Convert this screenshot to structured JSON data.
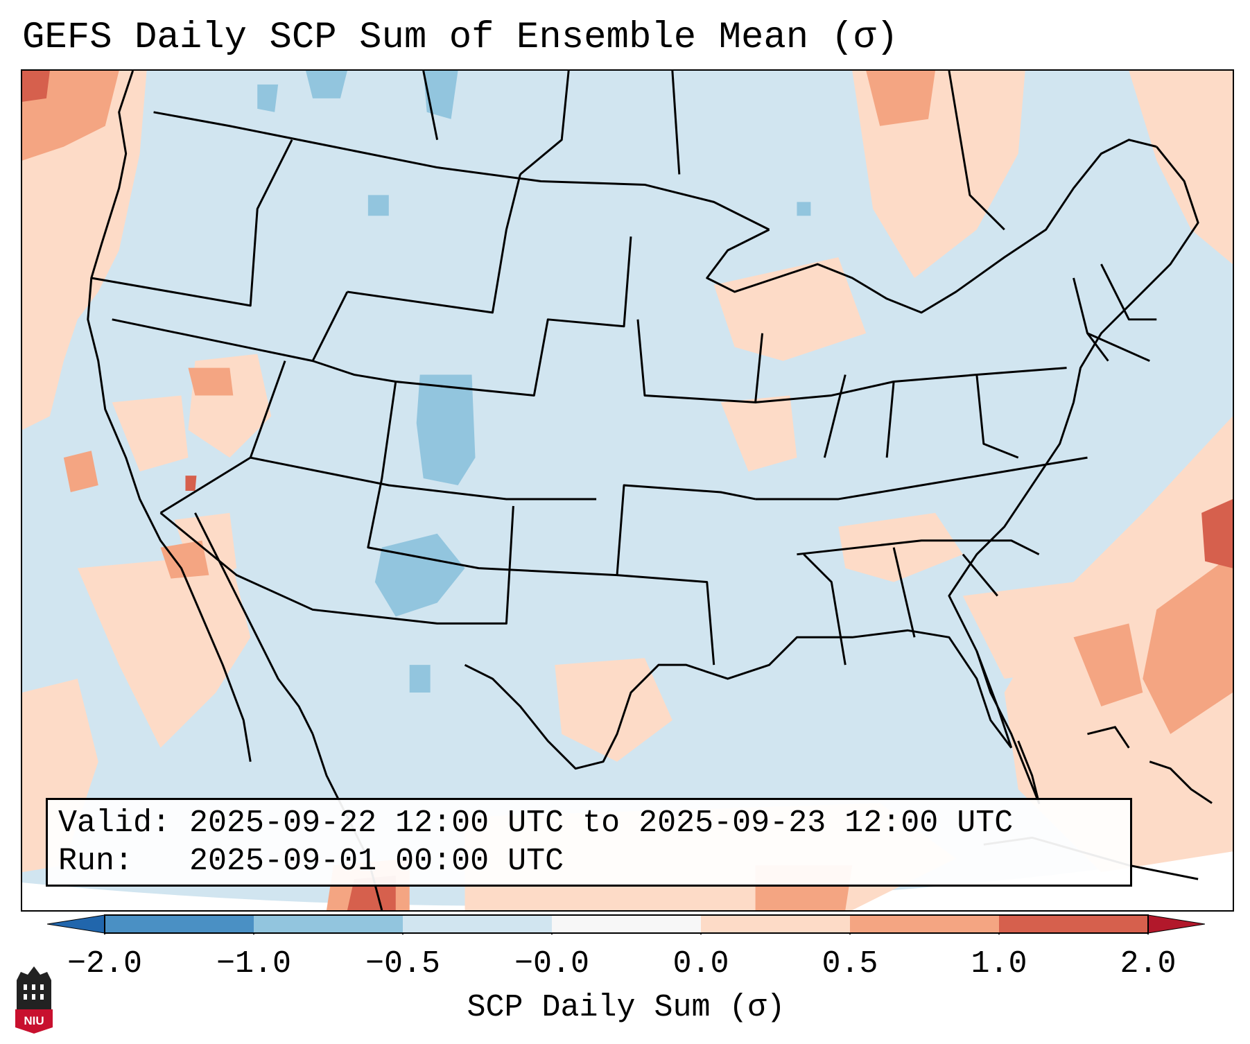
{
  "title": "GEFS Daily SCP Sum of Ensemble Mean (σ)",
  "info": {
    "valid_label": "Valid:",
    "valid_value": "2025-09-22 12:00 UTC to 2025-09-23 12:00 UTC",
    "run_label": "Run:",
    "run_value": "2025-09-01 00:00 UTC"
  },
  "colorbar": {
    "label": "SCP Daily Sum (σ)",
    "ticks": [
      "−2.0",
      "−1.0",
      "−0.5",
      "−0.0",
      "0.0",
      "0.5",
      "1.0",
      "2.0"
    ],
    "segment_colors": [
      "#4a90c4",
      "#92c5de",
      "#d1e5f0",
      "#f7f7f7",
      "#fddbc7",
      "#f4a582",
      "#d6604d"
    ],
    "under_color": "#2166ac",
    "over_color": "#b2182b"
  },
  "map": {
    "background_color": "#d1e5f0",
    "ocean_bulge_color": "#ffffff"
  },
  "logo": {
    "text": "NIU",
    "color": "#c8102e"
  }
}
